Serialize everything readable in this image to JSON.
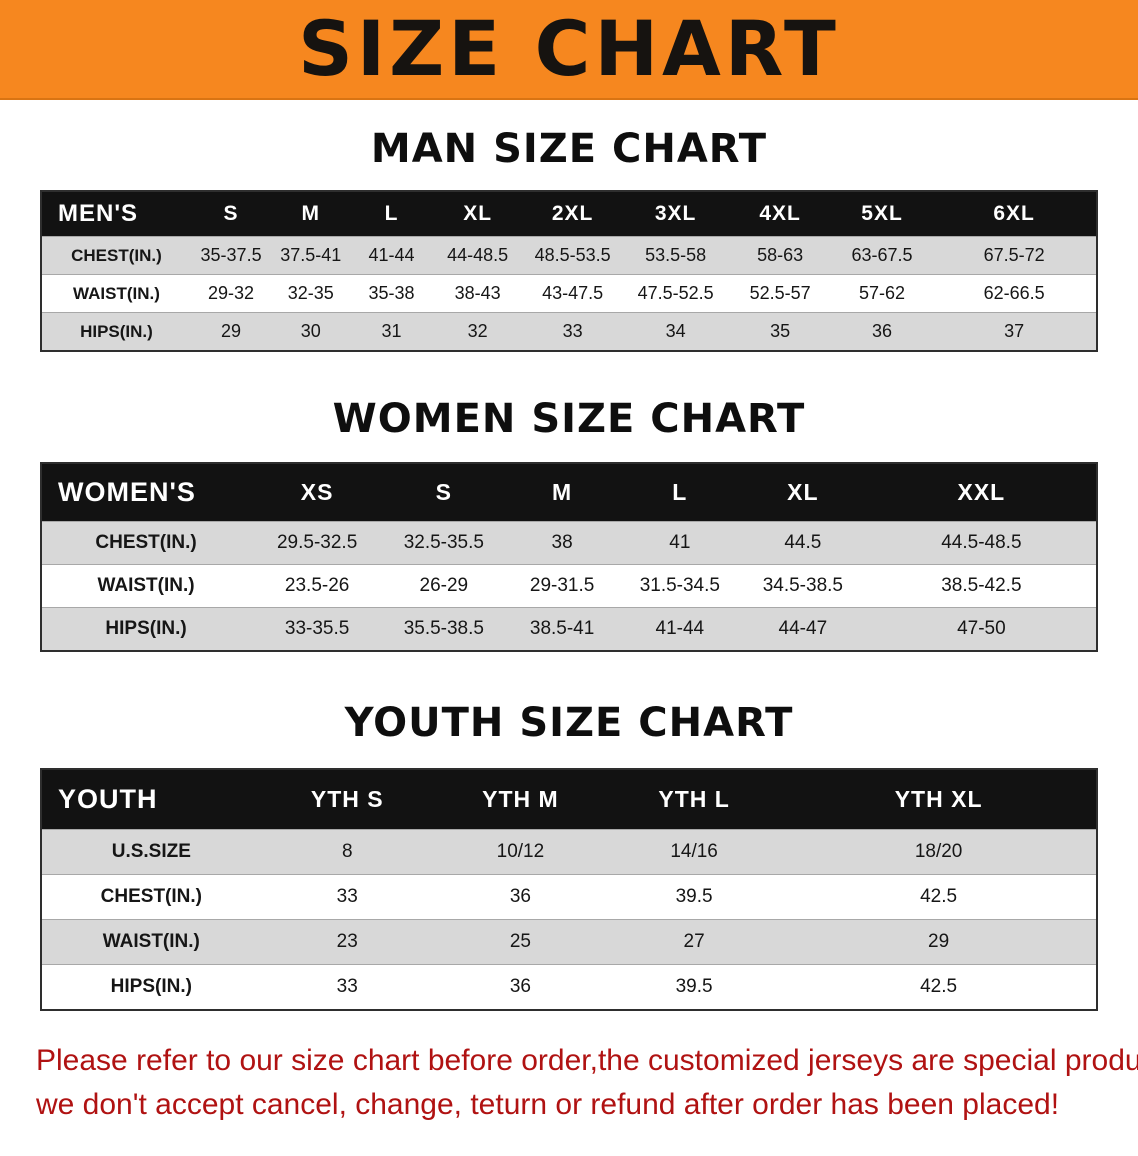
{
  "banner": {
    "title": "SIZE CHART",
    "bg_color": "#f6871f"
  },
  "sections": [
    {
      "heading": "MAN SIZE CHART",
      "table": {
        "header": [
          "MEN'S",
          "S",
          "M",
          "L",
          "XL",
          "2XL",
          "3XL",
          "4XL",
          "5XL",
          "6XL"
        ],
        "rows": [
          {
            "label": "CHEST(IN.)",
            "values": [
              "35-37.5",
              "37.5-41",
              "41-44",
              "44-48.5",
              "48.5-53.5",
              "53.5-58",
              "58-63",
              "63-67.5",
              "67.5-72"
            ]
          },
          {
            "label": "WAIST(IN.)",
            "values": [
              "29-32",
              "32-35",
              "35-38",
              "38-43",
              "43-47.5",
              "47.5-52.5",
              "52.5-57",
              "57-62",
              "62-66.5"
            ]
          },
          {
            "label": "HIPS(IN.)",
            "values": [
              "29",
              "30",
              "31",
              "32",
              "33",
              "34",
              "35",
              "36",
              "37"
            ]
          }
        ]
      }
    },
    {
      "heading": "WOMEN SIZE CHART",
      "table": {
        "header": [
          "WOMEN'S",
          "XS",
          "S",
          "M",
          "L",
          "XL",
          "XXL"
        ],
        "rows": [
          {
            "label": "CHEST(IN.)",
            "values": [
              "29.5-32.5",
              "32.5-35.5",
              "38",
              "41",
              "44.5",
              "44.5-48.5"
            ]
          },
          {
            "label": "WAIST(IN.)",
            "values": [
              "23.5-26",
              "26-29",
              "29-31.5",
              "31.5-34.5",
              "34.5-38.5",
              "38.5-42.5"
            ]
          },
          {
            "label": "HIPS(IN.)",
            "values": [
              "33-35.5",
              "35.5-38.5",
              "38.5-41",
              "41-44",
              "44-47",
              "47-50"
            ]
          }
        ]
      }
    },
    {
      "heading": "YOUTH SIZE CHART",
      "table": {
        "header": [
          "YOUTH",
          "YTH S",
          "YTH M",
          "YTH L",
          "YTH XL"
        ],
        "rows": [
          {
            "label": "U.S.SIZE",
            "values": [
              "8",
              "10/12",
              "14/16",
              "18/20"
            ]
          },
          {
            "label": "CHEST(IN.)",
            "values": [
              "33",
              "36",
              "39.5",
              "42.5"
            ]
          },
          {
            "label": "WAIST(IN.)",
            "values": [
              "23",
              "25",
              "27",
              "29"
            ]
          },
          {
            "label": "HIPS(IN.)",
            "values": [
              "33",
              "36",
              "39.5",
              "42.5"
            ]
          }
        ]
      }
    }
  ],
  "footer": {
    "line1": "Please refer to our size chart before order,the customized jerseys are special products,",
    "line2": "we don't accept cancel, change, teturn or refund after order has been placed!",
    "text_color": "#b01212"
  }
}
